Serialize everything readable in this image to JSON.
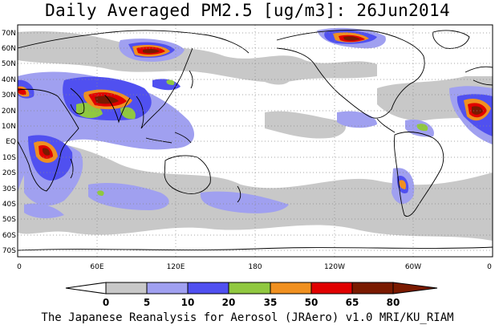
{
  "title": "Daily Averaged PM2.5 [ug/m3]: 26Jun2014",
  "footer": "The Japanese Reanalysis for Aerosol (JRAero) v1.0 MRI/KU_RIAM",
  "lat_labels": [
    "70N",
    "60N",
    "50N",
    "40N",
    "30N",
    "20N",
    "10N",
    "EQ",
    "10S",
    "20S",
    "30S",
    "40S",
    "50S",
    "60S",
    "70S"
  ],
  "lon_labels": [
    "0",
    "60E",
    "120E",
    "180",
    "120W",
    "60W",
    "0"
  ],
  "colorbar": {
    "ticks": [
      "0",
      "5",
      "10",
      "20",
      "35",
      "50",
      "65",
      "80"
    ],
    "colors": [
      "#ffffff",
      "#c8c8c8",
      "#a0a0f0",
      "#5050f0",
      "#90c840",
      "#f09020",
      "#e00000",
      "#7a1a00"
    ]
  },
  "map": {
    "projection": "equirectangular",
    "lon_range": [
      0,
      360
    ],
    "lat_range": [
      -75,
      75
    ],
    "grid": true,
    "land_outline_color": "#000000"
  }
}
